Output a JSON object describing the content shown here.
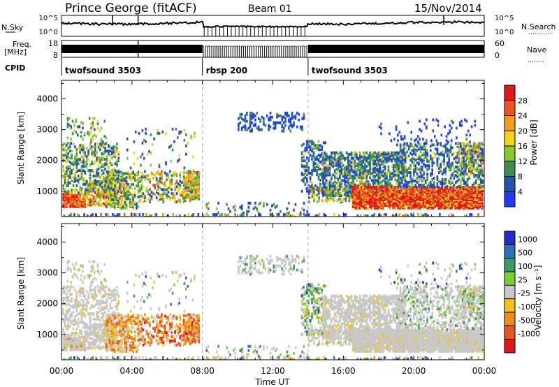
{
  "header": {
    "station": "Prince George (fitACF)",
    "beam": "Beam 01",
    "date": "15/Nov/2014"
  },
  "params": {
    "nsky_label": "N.Sky",
    "nsky_ticks": [
      "10^5",
      "10^0"
    ],
    "nsearch_label": "N.Search",
    "nsearch_ticks": [
      "10^5",
      "10^0"
    ],
    "freq_label": "Freq.",
    "freq_unit": "[MHz]",
    "freq_ticks": [
      "18",
      "8"
    ],
    "nave_label": "Nave",
    "nave_ticks": [
      "60",
      "0"
    ],
    "cpid_label": "CPID",
    "cpid_segments": [
      {
        "label": "twofsound 3503",
        "start": 0,
        "end": 8
      },
      {
        "label": "rbsp 200",
        "start": 8,
        "end": 14
      },
      {
        "label": "twofsound 3503",
        "start": 14,
        "end": 24
      }
    ]
  },
  "chart_data": [
    {
      "type": "heatmap",
      "panel": "power",
      "xlabel": "",
      "ylabel": "Slant Range [km]",
      "xlim": [
        0,
        24
      ],
      "ylim": [
        180,
        4600
      ],
      "yticks": [
        1000,
        2000,
        3000,
        4000
      ],
      "colorbar_label": "Power [dB]",
      "colorbar_ticks": [
        "4",
        "8",
        "12",
        "16",
        "20",
        "24",
        "28"
      ],
      "colorbar_colors": [
        "#1e3cff",
        "#2255b0",
        "#3a8f4c",
        "#88c833",
        "#f2d21a",
        "#f49a1e",
        "#f0531e",
        "#e01818"
      ],
      "mode_change_hours": [
        8,
        14
      ]
    },
    {
      "type": "heatmap",
      "panel": "velocity",
      "xlabel": "Time UT",
      "ylabel": "Slant Range [km]",
      "xlim": [
        0,
        24
      ],
      "ylim": [
        180,
        4600
      ],
      "xticks": [
        "00:00",
        "04:00",
        "08:00",
        "12:00",
        "16:00",
        "20:00",
        "00:00"
      ],
      "yticks": [
        1000,
        2000,
        3000,
        4000
      ],
      "colorbar_label": "Velocity [m s⁻¹]",
      "colorbar_ticks": [
        "1000",
        "500",
        "100",
        "25",
        "-25",
        "-100",
        "-500",
        "-1000"
      ],
      "colorbar_colors": [
        "#1e2ec8",
        "#2f6fb8",
        "#3c9a64",
        "#79cf3a",
        "#c8c8c8",
        "#f2c21a",
        "#f0891e",
        "#e8551e",
        "#e01818"
      ],
      "mode_change_hours": [
        8,
        14
      ]
    }
  ]
}
